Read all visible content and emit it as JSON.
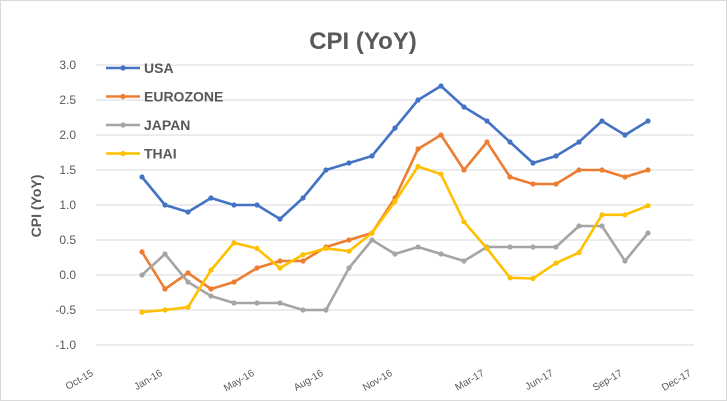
{
  "chart_data": {
    "type": "line",
    "title": "CPI (YoY)",
    "xlabel": "",
    "ylabel": "CPI (YoY)",
    "ylim": [
      -1.0,
      3.0
    ],
    "yticks": [
      "3.0",
      "2.5",
      "2.0",
      "1.5",
      "1.0",
      "0.5",
      "0.0",
      "-0.5",
      "-1.0"
    ],
    "ytick_values": [
      3.0,
      2.5,
      2.0,
      1.5,
      1.0,
      0.5,
      0.0,
      -0.5,
      -1.0
    ],
    "xlim_months": [
      "2015-10",
      "2017-12"
    ],
    "xticks": [
      {
        "label": "Oct-15",
        "month": 0
      },
      {
        "label": "Jan-16",
        "month": 3
      },
      {
        "label": "May-16",
        "month": 7
      },
      {
        "label": "Aug-16",
        "month": 10
      },
      {
        "label": "Nov-16",
        "month": 13
      },
      {
        "label": "Mar-17",
        "month": 17
      },
      {
        "label": "Jun-17",
        "month": 20
      },
      {
        "label": "Sep-17",
        "month": 23
      },
      {
        "label": "Dec-17",
        "month": 26
      }
    ],
    "x_start_month": 2,
    "grid": true,
    "legend_position": "top-left",
    "series": [
      {
        "name": "USA",
        "color": "#4472c4",
        "values": [
          1.4,
          1.0,
          0.9,
          1.1,
          1.0,
          1.0,
          0.8,
          1.1,
          1.5,
          1.6,
          1.7,
          2.1,
          2.5,
          2.7,
          2.4,
          2.2,
          1.9,
          1.6,
          1.7,
          1.9,
          2.2,
          2.0,
          2.2
        ]
      },
      {
        "name": "EUROZONE",
        "color": "#ed7d31",
        "values": [
          0.33,
          -0.2,
          0.03,
          -0.2,
          -0.1,
          0.1,
          0.2,
          0.2,
          0.4,
          0.5,
          0.6,
          1.1,
          1.8,
          2.0,
          1.5,
          1.9,
          1.4,
          1.3,
          1.3,
          1.5,
          1.5,
          1.4,
          1.5
        ]
      },
      {
        "name": "JAPAN",
        "color": "#a5a5a5",
        "values": [
          0.0,
          0.3,
          -0.1,
          -0.3,
          -0.4,
          -0.4,
          -0.4,
          -0.5,
          -0.5,
          0.1,
          0.5,
          0.3,
          0.4,
          0.3,
          0.2,
          0.4,
          0.4,
          0.4,
          0.4,
          0.7,
          0.7,
          0.2,
          0.6
        ]
      },
      {
        "name": "THAI",
        "color": "#ffc000",
        "values": [
          -0.53,
          -0.5,
          -0.46,
          0.07,
          0.46,
          0.38,
          0.1,
          0.29,
          0.38,
          0.34,
          0.6,
          1.05,
          1.55,
          1.44,
          0.76,
          0.38,
          -0.04,
          -0.05,
          0.17,
          0.32,
          0.86,
          0.86,
          0.99
        ]
      }
    ]
  }
}
